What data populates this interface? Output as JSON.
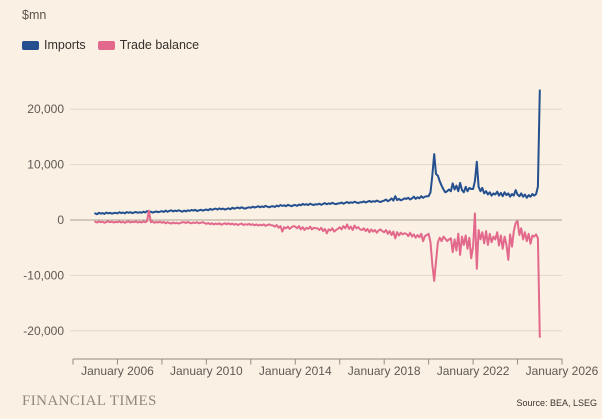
{
  "chart": {
    "unit_label": "$mn"
  },
  "legend": [
    {
      "label": "Imports",
      "color": "#24508f"
    },
    {
      "label": "Trade balance",
      "color": "#e2698c"
    }
  ],
  "footer": {
    "brand": "FINANCIAL TIMES",
    "source": "Source: BEA, LSEG"
  },
  "colors": {
    "background": "#faf0e3",
    "imports_line": "#24508f",
    "trade_balance_line": "#e2698c",
    "gridline": "#e2d7c8",
    "zero_line": "#aaa196",
    "axis_line": "#948c82",
    "tick_text": "#5f5954",
    "brand_text": "#8f897e",
    "source_text": "#39342e"
  },
  "chart_data": {
    "type": "line",
    "title": "",
    "ylabel": "$mn",
    "xlabel": "",
    "source": "BEA, LSEG",
    "grid": "horizontal",
    "legend_position": "top-left",
    "ylim": [
      -25000,
      24500
    ],
    "xlim": [
      2003.9,
      2026
    ],
    "y_ticks": [
      {
        "value": 20000,
        "label": "20,000"
      },
      {
        "value": 10000,
        "label": "10,000"
      },
      {
        "value": 0,
        "label": "0"
      },
      {
        "value": -10000,
        "label": "-10,000"
      },
      {
        "value": -20000,
        "label": "-20,000"
      }
    ],
    "x_ticks": {
      "minor_years": [
        2004,
        2006,
        2008,
        2010,
        2012,
        2014,
        2016,
        2018,
        2020,
        2022,
        2024,
        2026
      ],
      "labeled": [
        {
          "year": 2006,
          "label": "January 2006"
        },
        {
          "year": 2010,
          "label": "January 2010"
        },
        {
          "year": 2014,
          "label": "January 2014"
        },
        {
          "year": 2018,
          "label": "January 2018"
        },
        {
          "year": 2022,
          "label": "January 2022"
        },
        {
          "year": 2026,
          "label": "January 2026"
        }
      ]
    },
    "series": [
      {
        "name": "Imports",
        "color": "#24508f",
        "start_year": 2005,
        "frequency": "monthly",
        "values": [
          1200,
          1050,
          1300,
          1150,
          1250,
          1100,
          1350,
          1200,
          1300,
          1150,
          1250,
          1300,
          1200,
          1400,
          1250,
          1350,
          1200,
          1450,
          1300,
          1400,
          1250,
          1350,
          1450,
          1300,
          1400,
          1300,
          1500,
          1350,
          1600,
          1450,
          1500,
          1350,
          1450,
          1550,
          1400,
          1500,
          1600,
          1450,
          1700,
          1500,
          1650,
          1750,
          1550,
          1700,
          1600,
          1750,
          1650,
          1500,
          1700,
          1550,
          1750,
          1650,
          1800,
          1700,
          1850,
          1600,
          1750,
          1850,
          1700,
          1800,
          1900,
          1750,
          2000,
          1850,
          1950,
          2050,
          1900,
          2100,
          1950,
          2050,
          1900,
          2000,
          2100,
          1950,
          2200,
          2050,
          2150,
          2250,
          2100,
          2300,
          2150,
          2050,
          2200,
          2300,
          2200,
          2400,
          2250,
          2350,
          2500,
          2300,
          2450,
          2350,
          2550,
          2400,
          2300,
          2450,
          2500,
          2350,
          2600,
          2450,
          2700,
          2550,
          2650,
          2500,
          2750,
          2600,
          2500,
          2650,
          2700,
          2550,
          2800,
          2650,
          2900,
          2750,
          2850,
          2700,
          2950,
          2800,
          2700,
          2850,
          2800,
          2950,
          2750,
          2900,
          3050,
          2850,
          3000,
          2900,
          3100,
          2950,
          2850,
          3000,
          3000,
          3150,
          2950,
          3100,
          3250,
          3050,
          3200,
          3100,
          3300,
          3150,
          3050,
          3200,
          3200,
          3350,
          3150,
          3300,
          3450,
          3250,
          3400,
          3300,
          3500,
          3350,
          3250,
          3400,
          3500,
          3700,
          3400,
          3600,
          3900,
          3500,
          4300,
          3600,
          3800,
          3550,
          3700,
          3900,
          3800,
          4000,
          3700,
          3900,
          4200,
          3800,
          4100,
          3900,
          4300,
          4000,
          4200,
          4300,
          4300,
          5000,
          8000,
          11900,
          8300,
          8000,
          7000,
          6200,
          5500,
          5000,
          5200,
          5500,
          5200,
          6600,
          5500,
          6200,
          5200,
          6700,
          5400,
          5000,
          6000,
          5200,
          5800,
          5600,
          5600,
          7000,
          10500,
          6000,
          5200,
          5800,
          4800,
          5200,
          4600,
          5000,
          4400,
          4800,
          4600,
          5100,
          4400,
          4900,
          4300,
          5000,
          4500,
          4800,
          4200,
          4700,
          4400,
          5400,
          4600,
          4300,
          4800,
          4200,
          4600,
          4000,
          4500,
          4200,
          4700,
          4400,
          4700,
          6000,
          23400
        ]
      },
      {
        "name": "Trade balance",
        "color": "#e2698c",
        "start_year": 2005,
        "frequency": "monthly",
        "values": [
          -300,
          -450,
          -250,
          -400,
          -300,
          -500,
          -350,
          -250,
          -400,
          -300,
          -450,
          -350,
          -400,
          -250,
          -450,
          -300,
          -500,
          -350,
          -250,
          -450,
          -300,
          -400,
          -250,
          -450,
          -300,
          -450,
          -250,
          -400,
          -200,
          1700,
          -400,
          -250,
          -500,
          -350,
          -450,
          -300,
          -500,
          -350,
          -600,
          -400,
          -550,
          -650,
          -450,
          -600,
          -500,
          -650,
          -550,
          -400,
          -400,
          -550,
          -350,
          -500,
          -600,
          -450,
          -550,
          -400,
          -600,
          -500,
          -400,
          -550,
          -700,
          -550,
          -750,
          -600,
          -800,
          -650,
          -750,
          -600,
          -850,
          -700,
          -600,
          -750,
          -600,
          -800,
          -650,
          -850,
          -700,
          -900,
          -750,
          -650,
          -900,
          -750,
          -850,
          -700,
          -900,
          -750,
          -950,
          -800,
          -1000,
          -850,
          -950,
          -800,
          -1050,
          -900,
          -800,
          -950,
          -1000,
          -1200,
          -900,
          -1400,
          -1100,
          -2100,
          -1300,
          -1500,
          -1200,
          -1600,
          -1300,
          -1100,
          -1200,
          -1500,
          -1100,
          -1700,
          -1300,
          -1800,
          -1400,
          -1600,
          -1200,
          -1700,
          -1400,
          -1500,
          -1500,
          -1800,
          -1400,
          -2000,
          -1600,
          -2400,
          -1700,
          -1900,
          -1500,
          -2100,
          -1800,
          -1600,
          -1300,
          -1700,
          -1100,
          -1500,
          -800,
          -1600,
          -1200,
          -1800,
          -1000,
          -1500,
          -1300,
          -1700,
          -1800,
          -1500,
          -2000,
          -1600,
          -2200,
          -1700,
          -2100,
          -1800,
          -2300,
          -1900,
          -1700,
          -2000,
          -2200,
          -1800,
          -2500,
          -2000,
          -2700,
          -2100,
          -3300,
          -2200,
          -2800,
          -2300,
          -2600,
          -2400,
          -2500,
          -2900,
          -2300,
          -3000,
          -2600,
          -3200,
          -2700,
          -3100,
          -2500,
          -3800,
          -2900,
          -2700,
          -2500,
          -4000,
          -8000,
          -11000,
          -7500,
          -4000,
          -3200,
          -3800,
          -3000,
          -3400,
          -3800,
          -3500,
          -3300,
          -5800,
          -3500,
          -5500,
          -2500,
          -6300,
          -3000,
          -4500,
          -2800,
          -5200,
          -3200,
          -6900,
          -4800,
          1200,
          -8800,
          -1800,
          -3500,
          -2200,
          -4200,
          -2000,
          -4500,
          -2500,
          -4000,
          -3000,
          -3500,
          -2200,
          -4600,
          -2800,
          -5200,
          -3000,
          -4400,
          -7200,
          -2600,
          -4800,
          -2000,
          -500,
          -200,
          -2700,
          -1500,
          -3500,
          -2200,
          -3800,
          -2500,
          -4300,
          -2800,
          -3000,
          -2600,
          -3300,
          -21100
        ]
      }
    ]
  }
}
